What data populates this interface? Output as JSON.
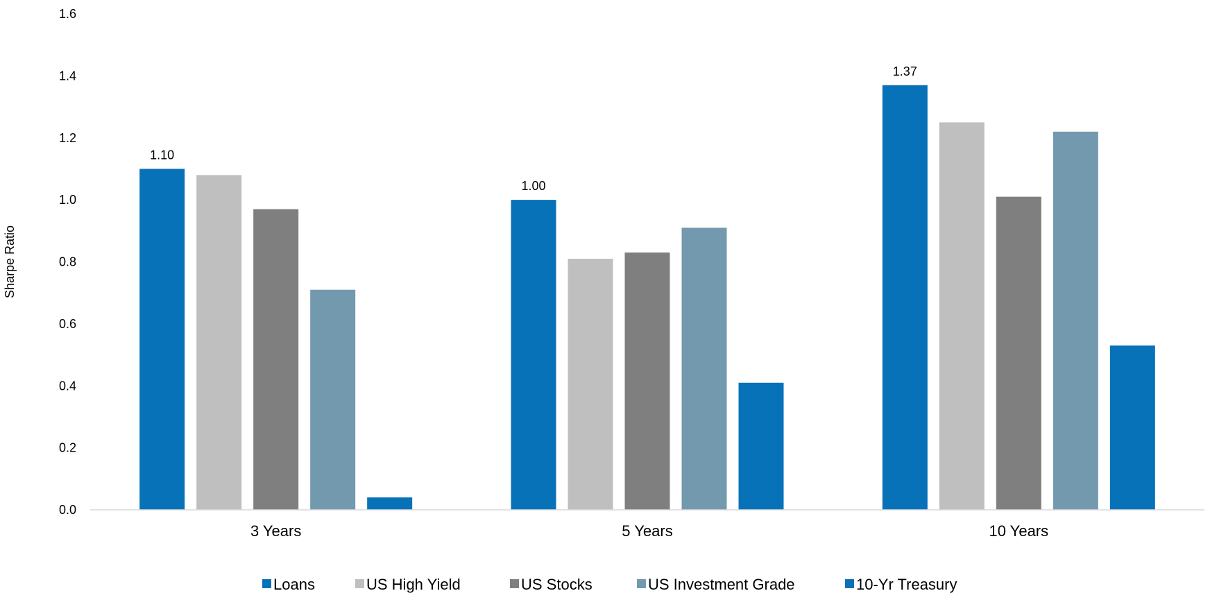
{
  "chart_data": {
    "type": "bar",
    "title": "",
    "xlabel": "",
    "ylabel": "Sharpe Ratio",
    "ylim": [
      0,
      1.6
    ],
    "yticks": [
      "0.0",
      "0.2",
      "0.4",
      "0.6",
      "0.8",
      "1.0",
      "1.2",
      "1.4",
      "1.6"
    ],
    "categories": [
      "3 Years",
      "5 Years",
      "10 Years"
    ],
    "grid": false,
    "legend_position": "bottom",
    "series": [
      {
        "name": "Loans",
        "color": "#0872B9",
        "values": [
          1.1,
          1.0,
          1.37
        ],
        "labels": [
          "1.10",
          "1.00",
          "1.37"
        ]
      },
      {
        "name": "US High Yield",
        "color": "#BFBFBF",
        "values": [
          1.08,
          0.81,
          1.25
        ]
      },
      {
        "name": "US Stocks",
        "color": "#7F7F7F",
        "values": [
          0.97,
          0.83,
          1.01
        ]
      },
      {
        "name": "US Investment Grade",
        "color": "#7399AE",
        "values": [
          0.71,
          0.91,
          1.22
        ]
      },
      {
        "name": "10-Yr Treasury",
        "color": "#0872B9",
        "values": [
          0.04,
          0.41,
          0.53
        ]
      }
    ]
  }
}
